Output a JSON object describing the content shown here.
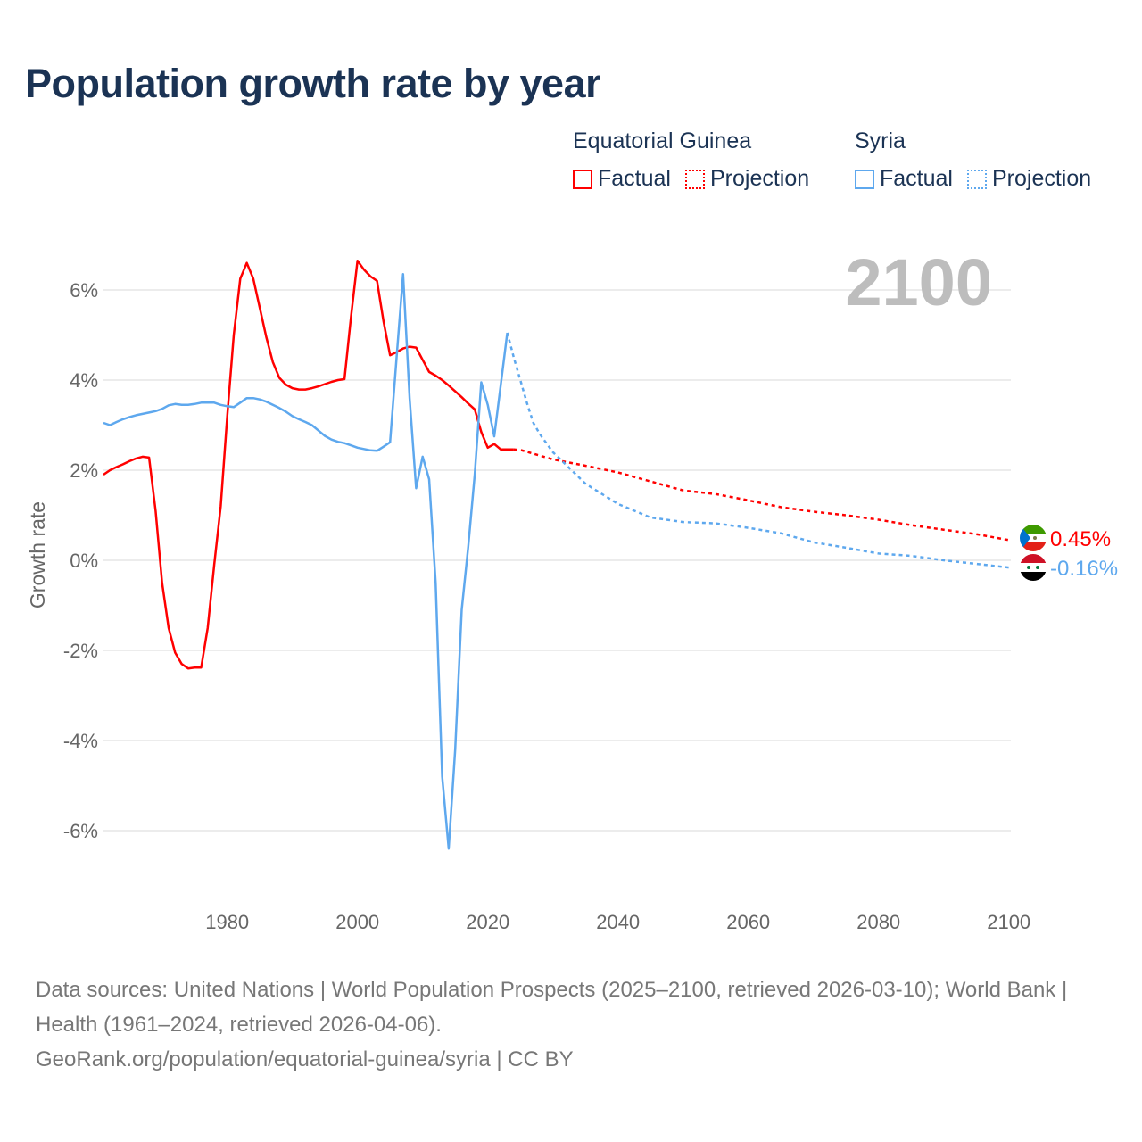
{
  "title": "Population growth rate by year",
  "legend": {
    "groups": [
      {
        "name": "Equatorial Guinea",
        "factual": "Factual",
        "projection": "Projection",
        "color": "#ff0000"
      },
      {
        "name": "Syria",
        "factual": "Factual",
        "projection": "Projection",
        "color": "#5ea8ee"
      }
    ]
  },
  "year_label": "2100",
  "source": {
    "line1": "Data sources: United Nations | World Population Prospects (2025–2100, retrieved 2026-03-10); World Bank | Health (1961–2024, retrieved 2026-04-06).",
    "line2": "GeoRank.org/population/equatorial-guinea/syria | CC BY"
  },
  "chart_data": {
    "type": "line",
    "title": "Population growth rate by year",
    "xlabel": "",
    "ylabel": "Growth rate",
    "xlim": [
      1961,
      2100
    ],
    "ylim": [
      -7.5,
      7.5
    ],
    "x_ticks": [
      1980,
      2000,
      2020,
      2040,
      2060,
      2080,
      2100
    ],
    "x_tick_labels": [
      "1980",
      "2000",
      "2020",
      "2040",
      "2060",
      "2080",
      "2100"
    ],
    "y_ticks": [
      6,
      4,
      2,
      0,
      -2,
      -4,
      -6
    ],
    "y_tick_labels": [
      "6%",
      "4%",
      "2%",
      "0%",
      "-2%",
      "-4%",
      "-6%"
    ],
    "grid": true,
    "legend_position": "top-right",
    "series": [
      {
        "name": "Equatorial Guinea",
        "color": "#ff0000",
        "end_label": "0.45%",
        "factual": {
          "x": [
            1961,
            1962,
            1963,
            1964,
            1965,
            1966,
            1967,
            1968,
            1969,
            1970,
            1971,
            1972,
            1973,
            1974,
            1975,
            1976,
            1977,
            1978,
            1979,
            1980,
            1981,
            1982,
            1983,
            1984,
            1985,
            1986,
            1987,
            1988,
            1989,
            1990,
            1991,
            1992,
            1993,
            1994,
            1995,
            1996,
            1997,
            1998,
            1999,
            2000,
            2001,
            2002,
            2003,
            2004,
            2005,
            2006,
            2007,
            2008,
            2009,
            2010,
            2011,
            2012,
            2013,
            2014,
            2015,
            2016,
            2017,
            2018,
            2019,
            2020,
            2021,
            2022,
            2023,
            2024
          ],
          "y": [
            1.9,
            2.0,
            2.07,
            2.13,
            2.2,
            2.26,
            2.3,
            2.28,
            1.1,
            -0.5,
            -1.5,
            -2.05,
            -2.3,
            -2.4,
            -2.38,
            -2.38,
            -1.5,
            -0.1,
            1.2,
            3.2,
            5.0,
            6.25,
            6.6,
            6.25,
            5.6,
            4.95,
            4.4,
            4.05,
            3.9,
            3.82,
            3.79,
            3.79,
            3.82,
            3.86,
            3.91,
            3.96,
            4.0,
            4.02,
            5.4,
            6.65,
            6.45,
            6.3,
            6.2,
            5.3,
            4.55,
            4.62,
            4.7,
            4.74,
            4.72,
            4.45,
            4.18,
            4.1,
            4.0,
            3.88,
            3.75,
            3.62,
            3.48,
            3.35,
            2.85,
            2.5,
            2.58,
            2.46,
            2.46,
            2.46
          ]
        },
        "projection": {
          "x": [
            2024,
            2025,
            2030,
            2035,
            2040,
            2045,
            2050,
            2055,
            2060,
            2065,
            2070,
            2075,
            2080,
            2085,
            2090,
            2095,
            2100
          ],
          "y": [
            2.46,
            2.45,
            2.24,
            2.1,
            1.95,
            1.75,
            1.55,
            1.47,
            1.33,
            1.18,
            1.08,
            1.0,
            0.9,
            0.78,
            0.68,
            0.58,
            0.45
          ]
        }
      },
      {
        "name": "Syria",
        "color": "#5ea8ee",
        "end_label": "-0.16%",
        "factual": {
          "x": [
            1961,
            1962,
            1963,
            1964,
            1965,
            1966,
            1967,
            1968,
            1969,
            1970,
            1971,
            1972,
            1973,
            1974,
            1975,
            1976,
            1977,
            1978,
            1979,
            1980,
            1981,
            1982,
            1983,
            1984,
            1985,
            1986,
            1987,
            1988,
            1989,
            1990,
            1991,
            1992,
            1993,
            1994,
            1995,
            1996,
            1997,
            1998,
            1999,
            2000,
            2001,
            2002,
            2003,
            2004,
            2005,
            2006,
            2007,
            2008,
            2009,
            2010,
            2011,
            2012,
            2013,
            2014,
            2015,
            2016,
            2017,
            2018,
            2019,
            2020,
            2021,
            2022,
            2023
          ],
          "y": [
            3.05,
            3.0,
            3.07,
            3.13,
            3.18,
            3.22,
            3.25,
            3.28,
            3.31,
            3.36,
            3.44,
            3.47,
            3.45,
            3.45,
            3.47,
            3.5,
            3.5,
            3.5,
            3.45,
            3.42,
            3.4,
            3.5,
            3.6,
            3.6,
            3.57,
            3.52,
            3.45,
            3.38,
            3.3,
            3.2,
            3.13,
            3.07,
            3.0,
            2.88,
            2.76,
            2.68,
            2.63,
            2.6,
            2.55,
            2.5,
            2.47,
            2.44,
            2.43,
            2.52,
            2.62,
            4.5,
            6.35,
            3.6,
            1.6,
            2.3,
            1.8,
            -0.5,
            -4.8,
            -6.4,
            -4.2,
            -1.1,
            0.3,
            1.9,
            3.95,
            3.45,
            2.75,
            3.9,
            5.05
          ]
        },
        "projection": {
          "x": [
            2023,
            2024,
            2025,
            2026,
            2027,
            2028,
            2029,
            2030,
            2035,
            2040,
            2045,
            2050,
            2055,
            2060,
            2065,
            2070,
            2075,
            2080,
            2085,
            2090,
            2095,
            2100
          ],
          "y": [
            5.05,
            4.5,
            4.0,
            3.5,
            3.05,
            2.8,
            2.6,
            2.4,
            1.7,
            1.25,
            0.95,
            0.85,
            0.82,
            0.72,
            0.6,
            0.4,
            0.28,
            0.15,
            0.1,
            0.0,
            -0.08,
            -0.16
          ]
        }
      }
    ]
  }
}
